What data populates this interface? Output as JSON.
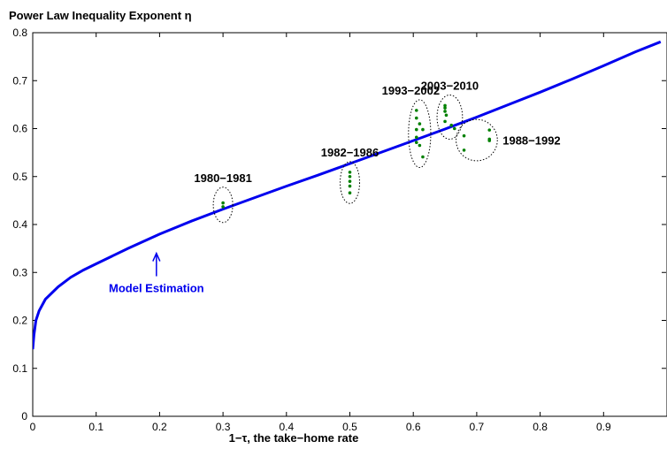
{
  "chart_data": {
    "type": "line",
    "title": "Power Law Inequality Exponent η",
    "xlabel": "1−τ, the take−home rate",
    "ylabel": "",
    "xlim": [
      0,
      1
    ],
    "ylim": [
      0,
      0.8
    ],
    "x_ticks": [
      "0",
      "0.1",
      "0.2",
      "0.3",
      "0.4",
      "0.5",
      "0.6",
      "0.7",
      "0.8",
      "0.9"
    ],
    "y_ticks": [
      "0",
      "0.1",
      "0.2",
      "0.3",
      "0.4",
      "0.5",
      "0.6",
      "0.7",
      "0.8"
    ],
    "grid": false,
    "colors": {
      "model": "#0000ee",
      "points": "#008000",
      "arrow": "#0000ee",
      "circles": "#000000"
    },
    "model_curve": {
      "name": "Model Estimation",
      "x": [
        0.0,
        0.002,
        0.005,
        0.01,
        0.02,
        0.04,
        0.06,
        0.08,
        0.1,
        0.15,
        0.2,
        0.25,
        0.3,
        0.35,
        0.4,
        0.45,
        0.5,
        0.55,
        0.6,
        0.65,
        0.7,
        0.75,
        0.8,
        0.85,
        0.9,
        0.95,
        0.99
      ],
      "y": [
        0.14,
        0.17,
        0.2,
        0.22,
        0.244,
        0.27,
        0.29,
        0.305,
        0.318,
        0.35,
        0.38,
        0.407,
        0.432,
        0.456,
        0.48,
        0.503,
        0.527,
        0.551,
        0.575,
        0.599,
        0.624,
        0.65,
        0.676,
        0.703,
        0.731,
        0.76,
        0.781
      ]
    },
    "periods": [
      {
        "label": "1980−1981",
        "points": [
          [
            0.3,
            0.445
          ],
          [
            0.3,
            0.437
          ]
        ]
      },
      {
        "label": "1982−1986",
        "points": [
          [
            0.5,
            0.509
          ],
          [
            0.5,
            0.5
          ],
          [
            0.5,
            0.49
          ],
          [
            0.5,
            0.48
          ],
          [
            0.5,
            0.466
          ]
        ]
      },
      {
        "label": "1993−2002",
        "points": [
          [
            0.605,
            0.638
          ],
          [
            0.605,
            0.622
          ],
          [
            0.61,
            0.61
          ],
          [
            0.605,
            0.598
          ],
          [
            0.605,
            0.582
          ],
          [
            0.605,
            0.571
          ],
          [
            0.61,
            0.565
          ],
          [
            0.615,
            0.598
          ],
          [
            0.615,
            0.541
          ]
        ]
      },
      {
        "label": "2003−2010",
        "points": [
          [
            0.65,
            0.648
          ],
          [
            0.65,
            0.643
          ],
          [
            0.65,
            0.636
          ],
          [
            0.652,
            0.628
          ],
          [
            0.65,
            0.615
          ],
          [
            0.66,
            0.607
          ],
          [
            0.665,
            0.6
          ]
        ]
      },
      {
        "label": "1988−1992",
        "points": [
          [
            0.72,
            0.597
          ],
          [
            0.72,
            0.578
          ],
          [
            0.72,
            0.575
          ],
          [
            0.68,
            0.585
          ],
          [
            0.68,
            0.555
          ]
        ]
      }
    ],
    "annotations": [
      {
        "text": "Model Estimation",
        "arrow_to": [
          0.195,
          0.34
        ]
      }
    ]
  }
}
